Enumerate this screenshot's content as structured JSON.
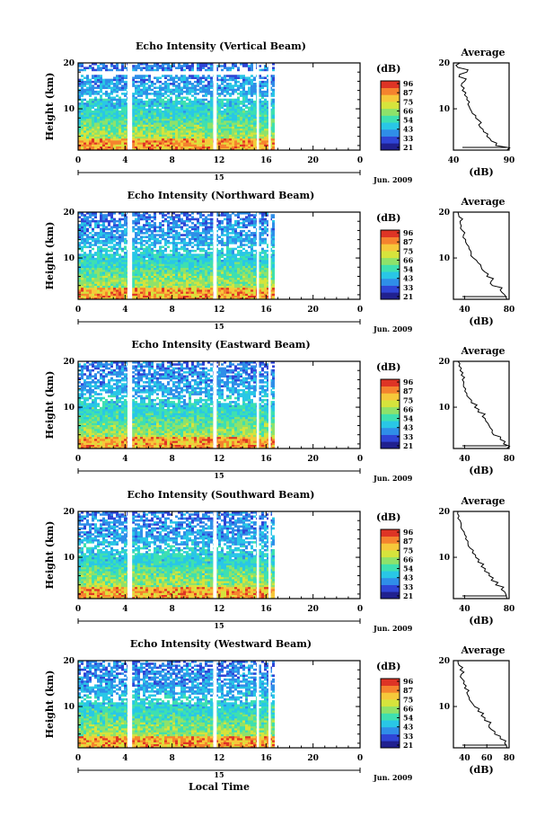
{
  "figure": {
    "xlabel": "Local Time",
    "date_day": "15",
    "month_year": "Jun. 2009",
    "colorbar_unit": "(dB)",
    "colorbar_ticks": [
      "96",
      "87",
      "75",
      "66",
      "54",
      "43",
      "33",
      "21"
    ],
    "ylabel": "Height (km)",
    "avg_title": "Average",
    "avg_xlabel": "(dB)",
    "data_gaps_hours": [
      [
        4.2,
        4.6
      ],
      [
        11.5,
        11.8
      ],
      [
        15.2,
        15.4
      ],
      [
        16.2,
        16.4
      ]
    ],
    "data_end_hour": 16.7,
    "colormap": [
      "#20208f",
      "#2f45d6",
      "#2f8ee8",
      "#29c7e6",
      "#3ee0b0",
      "#8ee26a",
      "#d6e43c",
      "#f6c83a",
      "#f5832e",
      "#de3425"
    ]
  },
  "chart_data": [
    {
      "type": "heatmap",
      "title": "Echo Intensity (Vertical Beam)",
      "xlim": [
        0,
        24
      ],
      "xticks": [
        "0",
        "4",
        "8",
        "12",
        "16",
        "20",
        "0"
      ],
      "ylim": [
        1,
        20
      ],
      "yticks": [
        "10",
        "20"
      ],
      "avg": {
        "xlim": [
          40,
          90
        ],
        "xticks": [
          "40",
          "90"
        ],
        "yticks": [
          "10",
          "20"
        ],
        "height_km": [
          1,
          2,
          3,
          4,
          5,
          6,
          7,
          8,
          9,
          10,
          11,
          12,
          13,
          14,
          15,
          16,
          17,
          18,
          19,
          20
        ],
        "values_db": [
          88,
          78,
          74,
          70,
          67,
          64,
          65,
          60,
          57,
          55,
          53,
          52,
          50,
          48,
          47,
          50,
          45,
          52,
          44,
          46
        ]
      }
    },
    {
      "type": "heatmap",
      "title": "Echo Intensity (Northward Beam)",
      "xlim": [
        0,
        24
      ],
      "xticks": [
        "0",
        "4",
        "8",
        "12",
        "16",
        "20",
        "0"
      ],
      "ylim": [
        1,
        20
      ],
      "yticks": [
        "10",
        "20"
      ],
      "avg": {
        "xlim": [
          30,
          80
        ],
        "xticks": [
          "40",
          "80"
        ],
        "yticks": [
          "10",
          "20"
        ],
        "height_km": [
          1,
          2,
          3,
          4,
          5,
          6,
          7,
          8,
          9,
          10,
          11,
          12,
          13,
          14,
          15,
          16,
          17,
          18,
          19,
          20
        ],
        "values_db": [
          78,
          76,
          72,
          65,
          64,
          60,
          58,
          55,
          52,
          48,
          46,
          44,
          42,
          41,
          39,
          38,
          37,
          36,
          35,
          34
        ]
      }
    },
    {
      "type": "heatmap",
      "title": "Echo Intensity (Eastward Beam)",
      "xlim": [
        0,
        24
      ],
      "xticks": [
        "0",
        "4",
        "8",
        "12",
        "16",
        "20",
        "0"
      ],
      "ylim": [
        1,
        20
      ],
      "yticks": [
        "10",
        "20"
      ],
      "avg": {
        "xlim": [
          30,
          80
        ],
        "xticks": [
          "40",
          "80"
        ],
        "yticks": [
          "10",
          "20"
        ],
        "height_km": [
          1,
          2,
          3,
          4,
          5,
          6,
          7,
          8,
          9,
          10,
          11,
          12,
          13,
          14,
          15,
          16,
          17,
          18,
          19,
          20
        ],
        "values_db": [
          78,
          75,
          72,
          66,
          65,
          62,
          59,
          56,
          52,
          49,
          46,
          44,
          42,
          41,
          39,
          38,
          37,
          36,
          35,
          34
        ]
      }
    },
    {
      "type": "heatmap",
      "title": "Echo Intensity (Southward Beam)",
      "xlim": [
        0,
        24
      ],
      "xticks": [
        "0",
        "4",
        "8",
        "12",
        "16",
        "20",
        "0"
      ],
      "ylim": [
        1,
        20
      ],
      "yticks": [
        "10",
        "20"
      ],
      "avg": {
        "xlim": [
          30,
          80
        ],
        "xticks": [
          "40",
          "80"
        ],
        "yticks": [
          "10",
          "20"
        ],
        "height_km": [
          1,
          2,
          3,
          4,
          5,
          6,
          7,
          8,
          9,
          10,
          11,
          12,
          13,
          14,
          15,
          16,
          17,
          18,
          19,
          20
        ],
        "values_db": [
          78,
          77,
          73,
          68,
          64,
          62,
          58,
          55,
          52,
          50,
          47,
          45,
          43,
          41,
          40,
          38,
          37,
          36,
          35,
          34
        ]
      }
    },
    {
      "type": "heatmap",
      "title": "Echo Intensity (Westward Beam)",
      "xlim": [
        0,
        24
      ],
      "xticks": [
        "0",
        "4",
        "8",
        "12",
        "16",
        "20",
        "0"
      ],
      "ylim": [
        1,
        20
      ],
      "yticks": [
        "10",
        "20"
      ],
      "avg": {
        "xlim": [
          30,
          80
        ],
        "xticks": [
          "40",
          "60",
          "80"
        ],
        "yticks": [
          "10",
          "20"
        ],
        "height_km": [
          1,
          2,
          3,
          4,
          5,
          6,
          7,
          8,
          9,
          10,
          11,
          12,
          13,
          14,
          15,
          16,
          17,
          18,
          19,
          20
        ],
        "values_db": [
          78,
          76,
          72,
          67,
          64,
          62,
          58,
          55,
          52,
          49,
          46,
          44,
          42,
          40,
          39,
          38,
          37,
          36,
          35,
          34
        ]
      }
    }
  ]
}
